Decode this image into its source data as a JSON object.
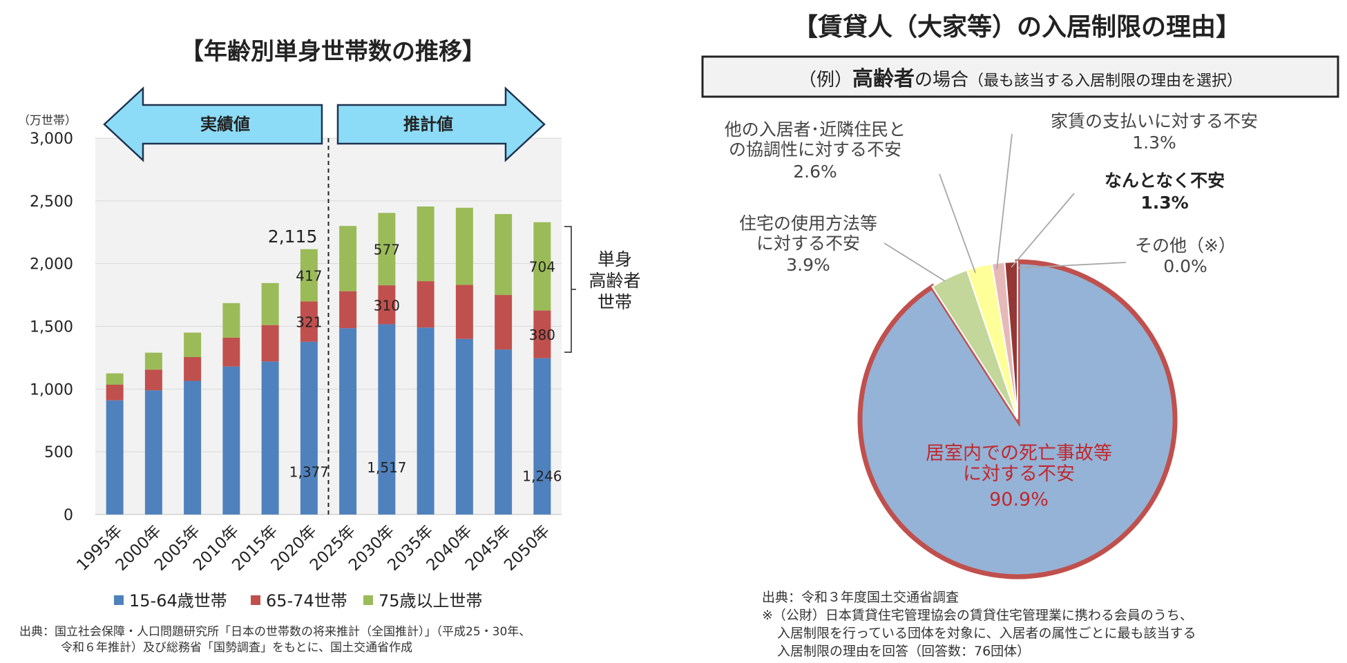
{
  "chart_data": [
    {
      "type": "bar",
      "stacked": true,
      "title": "【年齢別単身世帯数の推移】",
      "unit_label": "（万世帯）",
      "categories": [
        "1995年",
        "2000年",
        "2005年",
        "2010年",
        "2015年",
        "2020年",
        "2025年",
        "2030年",
        "2035年",
        "2040年",
        "2045年",
        "2050年"
      ],
      "series": [
        {
          "name": "15-64歳世帯",
          "color": "#4f81bd",
          "values": [
            910,
            990,
            1065,
            1180,
            1220,
            1377,
            1485,
            1517,
            1490,
            1400,
            1315,
            1246
          ]
        },
        {
          "name": "65-74世帯",
          "color": "#c0504d",
          "values": [
            125,
            165,
            190,
            230,
            290,
            321,
            295,
            310,
            370,
            430,
            435,
            380
          ]
        },
        {
          "name": "75歳以上世帯",
          "color": "#9bbb59",
          "values": [
            90,
            135,
            195,
            275,
            335,
            417,
            520,
            577,
            595,
            615,
            645,
            704
          ]
        }
      ],
      "ylim": [
        0,
        3000
      ],
      "yticks": [
        0,
        500,
        1000,
        1500,
        2000,
        2500,
        3000
      ],
      "ytick_labels": [
        "0",
        "500",
        "1,000",
        "1,500",
        "2,000",
        "2,500",
        "3,000"
      ],
      "grid": true,
      "legend": "bottom",
      "annotations": [
        {
          "text": "2,115",
          "category": "2020年",
          "kind": "total"
        },
        {
          "text": "417",
          "category": "2020年",
          "series": "75歳以上世帯"
        },
        {
          "text": "321",
          "category": "2020年",
          "series": "65-74世帯"
        },
        {
          "text": "1,377",
          "category": "2020年",
          "series": "15-64歳世帯"
        },
        {
          "text": "577",
          "category": "2030年",
          "series": "75歳以上世帯"
        },
        {
          "text": "310",
          "category": "2030年",
          "series": "65-74世帯"
        },
        {
          "text": "1,517",
          "category": "2030年",
          "series": "15-64歳世帯"
        },
        {
          "text": "704",
          "category": "2050年",
          "series": "75歳以上世帯"
        },
        {
          "text": "380",
          "category": "2050年",
          "series": "65-74世帯"
        },
        {
          "text": "1,246",
          "category": "2050年",
          "series": "15-64歳世帯"
        }
      ],
      "actual_arrow_label": "実績値",
      "projected_arrow_label": "推計値",
      "bracket_label": [
        "単身",
        "高齢者",
        "世帯"
      ],
      "source_lines": [
        "出典：国立社会保障・人口問題研究所「日本の世帯数の将来推計（全国推計）」（平成25・30年、",
        "令和６年推計）及び総務省「国勢調査」をもとに、国土交通省作成"
      ]
    },
    {
      "type": "pie",
      "title": "【賃貸人（大家等）の入居制限の理由】",
      "subtitle_pre": "（例）",
      "subtitle_bold": "高齢者",
      "subtitle_mid": "の場合",
      "subtitle_small": "（最も該当する入居制限の理由を選択）",
      "slices": [
        {
          "label": "居室内での死亡事故等に対する不安",
          "label_lines": [
            "居室内での死亡事故等",
            "に対する不安"
          ],
          "value": 90.9,
          "value_text": "90.9%",
          "color": "#95b3d7"
        },
        {
          "label": "住宅の使用方法等に対する不安",
          "label_lines": [
            "住宅の使用方法等",
            "に対する不安"
          ],
          "value": 3.9,
          "value_text": "3.9%",
          "color": "#c4d79b"
        },
        {
          "label": "他の入居者・近隣住民との協調性に対する不安",
          "label_lines": [
            "他の入居者･近隣住民と",
            "の協調性に対する不安"
          ],
          "value": 2.6,
          "value_text": "2.6%",
          "color": "#ffff99"
        },
        {
          "label": "家賃の支払いに対する不安",
          "label_lines": [
            "家賃の支払いに対する不安"
          ],
          "value": 1.3,
          "value_text": "1.3%",
          "color": "#e6b9b8"
        },
        {
          "label": "なんとなく不安",
          "label_lines": [
            "なんとなく不安"
          ],
          "value": 1.3,
          "value_text": "1.3%",
          "color": "#953735"
        },
        {
          "label": "その他（※）",
          "label_lines": [
            "その他（※）"
          ],
          "value": 0.0,
          "value_text": "0.0%",
          "color": "#bfbfbf"
        }
      ],
      "source_lines": [
        "出典：令和３年度国土交通省調査",
        "※（公財）日本賃貸住宅管理協会の賃貸住宅管理業に携わる会員のうち、",
        "入居制限を行っている団体を対象に、入居者の属性ごとに最も該当する",
        "入居制限の理由を回答（回答数：76団体）"
      ]
    }
  ]
}
